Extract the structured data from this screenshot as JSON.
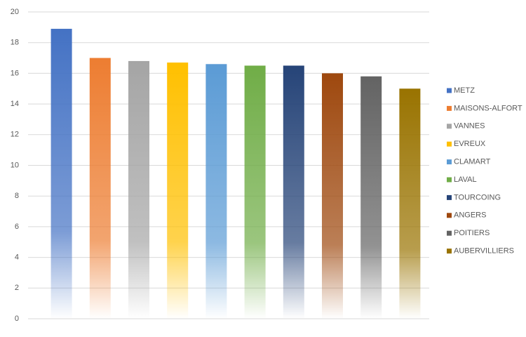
{
  "chart_data": {
    "type": "bar",
    "series": [
      {
        "name": "METZ",
        "color": "#4472c4",
        "values": [
          18.9
        ]
      },
      {
        "name": "MAISONS-ALFORT",
        "color": "#ed7d31",
        "values": [
          17.0
        ]
      },
      {
        "name": "VANNES",
        "color": "#a5a5a5",
        "values": [
          16.8
        ]
      },
      {
        "name": "EVREUX",
        "color": "#ffc000",
        "values": [
          16.7
        ]
      },
      {
        "name": "CLAMART",
        "color": "#5b9bd5",
        "values": [
          16.6
        ]
      },
      {
        "name": "LAVAL",
        "color": "#70ad47",
        "values": [
          16.5
        ]
      },
      {
        "name": "TOURCOING",
        "color": "#264478",
        "values": [
          16.5
        ]
      },
      {
        "name": "ANGERS",
        "color": "#9e480e",
        "values": [
          16.0
        ]
      },
      {
        "name": "POITIERS",
        "color": "#636363",
        "values": [
          15.8
        ]
      },
      {
        "name": "AUBERVILLIERS",
        "color": "#997300",
        "values": [
          15.0
        ]
      }
    ],
    "ylim": [
      0,
      20
    ],
    "yticks": [
      0,
      2,
      4,
      6,
      8,
      10,
      12,
      14,
      16,
      18,
      20
    ],
    "grid": true,
    "legend": "right"
  }
}
